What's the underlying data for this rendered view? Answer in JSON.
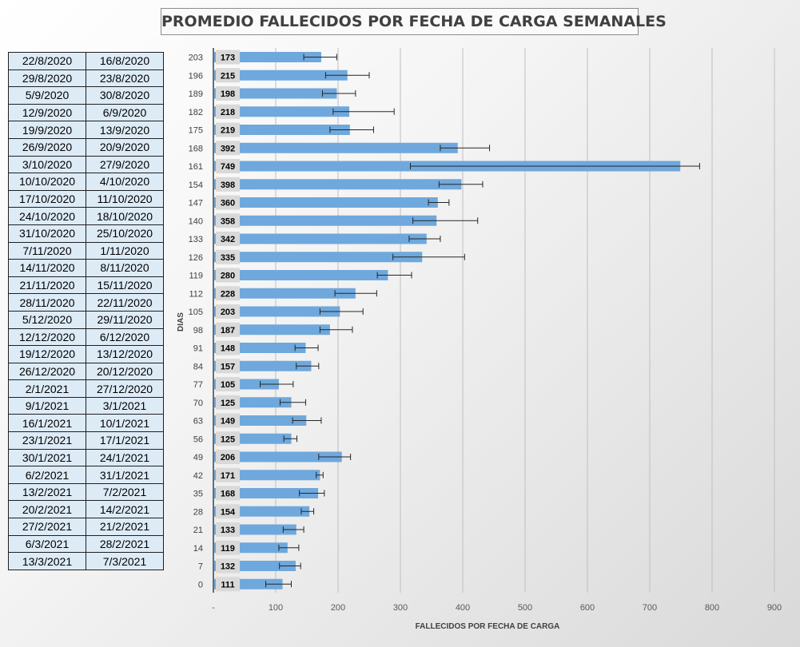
{
  "chart_data": {
    "type": "bar",
    "orientation": "horizontal",
    "title": "PROMEDIO FALLECIDOS POR FECHA DE CARGA SEMANALES",
    "xlabel": "FALLECIDOS POR FECHA DE CARGA",
    "ylabel": "DIAS",
    "xlim": [
      0,
      900
    ],
    "x_ticks": [
      "-",
      "100",
      "200",
      "300",
      "400",
      "500",
      "600",
      "700",
      "800",
      "900"
    ],
    "grid": true,
    "bar_color": "#6fa8dc",
    "rows": [
      {
        "end": "22/8/2020",
        "start": "16/8/2020",
        "dias": "203",
        "value": 173,
        "err_low": 145,
        "err_high": 198
      },
      {
        "end": "29/8/2020",
        "start": "23/8/2020",
        "dias": "196",
        "value": 215,
        "err_low": 180,
        "err_high": 250
      },
      {
        "end": "5/9/2020",
        "start": "30/8/2020",
        "dias": "189",
        "value": 198,
        "err_low": 175,
        "err_high": 228
      },
      {
        "end": "12/9/2020",
        "start": "6/9/2020",
        "dias": "182",
        "value": 218,
        "err_low": 192,
        "err_high": 290
      },
      {
        "end": "19/9/2020",
        "start": "13/9/2020",
        "dias": "175",
        "value": 219,
        "err_low": 187,
        "err_high": 257
      },
      {
        "end": "26/9/2020",
        "start": "20/9/2020",
        "dias": "168",
        "value": 392,
        "err_low": 364,
        "err_high": 443
      },
      {
        "end": "3/10/2020",
        "start": "27/9/2020",
        "dias": "161",
        "value": 749,
        "err_low": 316,
        "err_high": 780
      },
      {
        "end": "10/10/2020",
        "start": "4/10/2020",
        "dias": "154",
        "value": 398,
        "err_low": 362,
        "err_high": 432
      },
      {
        "end": "17/10/2020",
        "start": "11/10/2020",
        "dias": "147",
        "value": 360,
        "err_low": 345,
        "err_high": 378
      },
      {
        "end": "24/10/2020",
        "start": "18/10/2020",
        "dias": "140",
        "value": 358,
        "err_low": 320,
        "err_high": 424
      },
      {
        "end": "31/10/2020",
        "start": "25/10/2020",
        "dias": "133",
        "value": 342,
        "err_low": 314,
        "err_high": 364
      },
      {
        "end": "7/11/2020",
        "start": "1/11/2020",
        "dias": "126",
        "value": 335,
        "err_low": 288,
        "err_high": 403
      },
      {
        "end": "14/11/2020",
        "start": "8/11/2020",
        "dias": "119",
        "value": 280,
        "err_low": 263,
        "err_high": 318
      },
      {
        "end": "21/11/2020",
        "start": "15/11/2020",
        "dias": "112",
        "value": 228,
        "err_low": 195,
        "err_high": 262
      },
      {
        "end": "28/11/2020",
        "start": "22/11/2020",
        "dias": "105",
        "value": 203,
        "err_low": 171,
        "err_high": 240
      },
      {
        "end": "5/12/2020",
        "start": "29/11/2020",
        "dias": "98",
        "value": 187,
        "err_low": 171,
        "err_high": 223
      },
      {
        "end": "12/12/2020",
        "start": "6/12/2020",
        "dias": "91",
        "value": 148,
        "err_low": 131,
        "err_high": 168
      },
      {
        "end": "19/12/2020",
        "start": "13/12/2020",
        "dias": "84",
        "value": 157,
        "err_low": 133,
        "err_high": 169
      },
      {
        "end": "26/12/2020",
        "start": "20/12/2020",
        "dias": "77",
        "value": 105,
        "err_low": 75,
        "err_high": 128
      },
      {
        "end": "2/1/2021",
        "start": "27/12/2020",
        "dias": "70",
        "value": 125,
        "err_low": 107,
        "err_high": 148
      },
      {
        "end": "9/1/2021",
        "start": "3/1/2021",
        "dias": "63",
        "value": 149,
        "err_low": 127,
        "err_high": 173
      },
      {
        "end": "16/1/2021",
        "start": "10/1/2021",
        "dias": "56",
        "value": 125,
        "err_low": 113,
        "err_high": 134
      },
      {
        "end": "23/1/2021",
        "start": "17/1/2021",
        "dias": "49",
        "value": 206,
        "err_low": 169,
        "err_high": 220
      },
      {
        "end": "30/1/2021",
        "start": "24/1/2021",
        "dias": "42",
        "value": 171,
        "err_low": 165,
        "err_high": 176
      },
      {
        "end": "6/2/2021",
        "start": "31/1/2021",
        "dias": "35",
        "value": 168,
        "err_low": 138,
        "err_high": 178
      },
      {
        "end": "13/2/2021",
        "start": "7/2/2021",
        "dias": "28",
        "value": 154,
        "err_low": 141,
        "err_high": 161
      },
      {
        "end": "20/2/2021",
        "start": "14/2/2021",
        "dias": "21",
        "value": 133,
        "err_low": 112,
        "err_high": 145
      },
      {
        "end": "27/2/2021",
        "start": "21/2/2021",
        "dias": "14",
        "value": 119,
        "err_low": 105,
        "err_high": 137
      },
      {
        "end": "6/3/2021",
        "start": "28/2/2021",
        "dias": "7",
        "value": 132,
        "err_low": 106,
        "err_high": 140
      },
      {
        "end": "13/3/2021",
        "start": "7/3/2021",
        "dias": "0",
        "value": 111,
        "err_low": 84,
        "err_high": 125
      }
    ]
  }
}
